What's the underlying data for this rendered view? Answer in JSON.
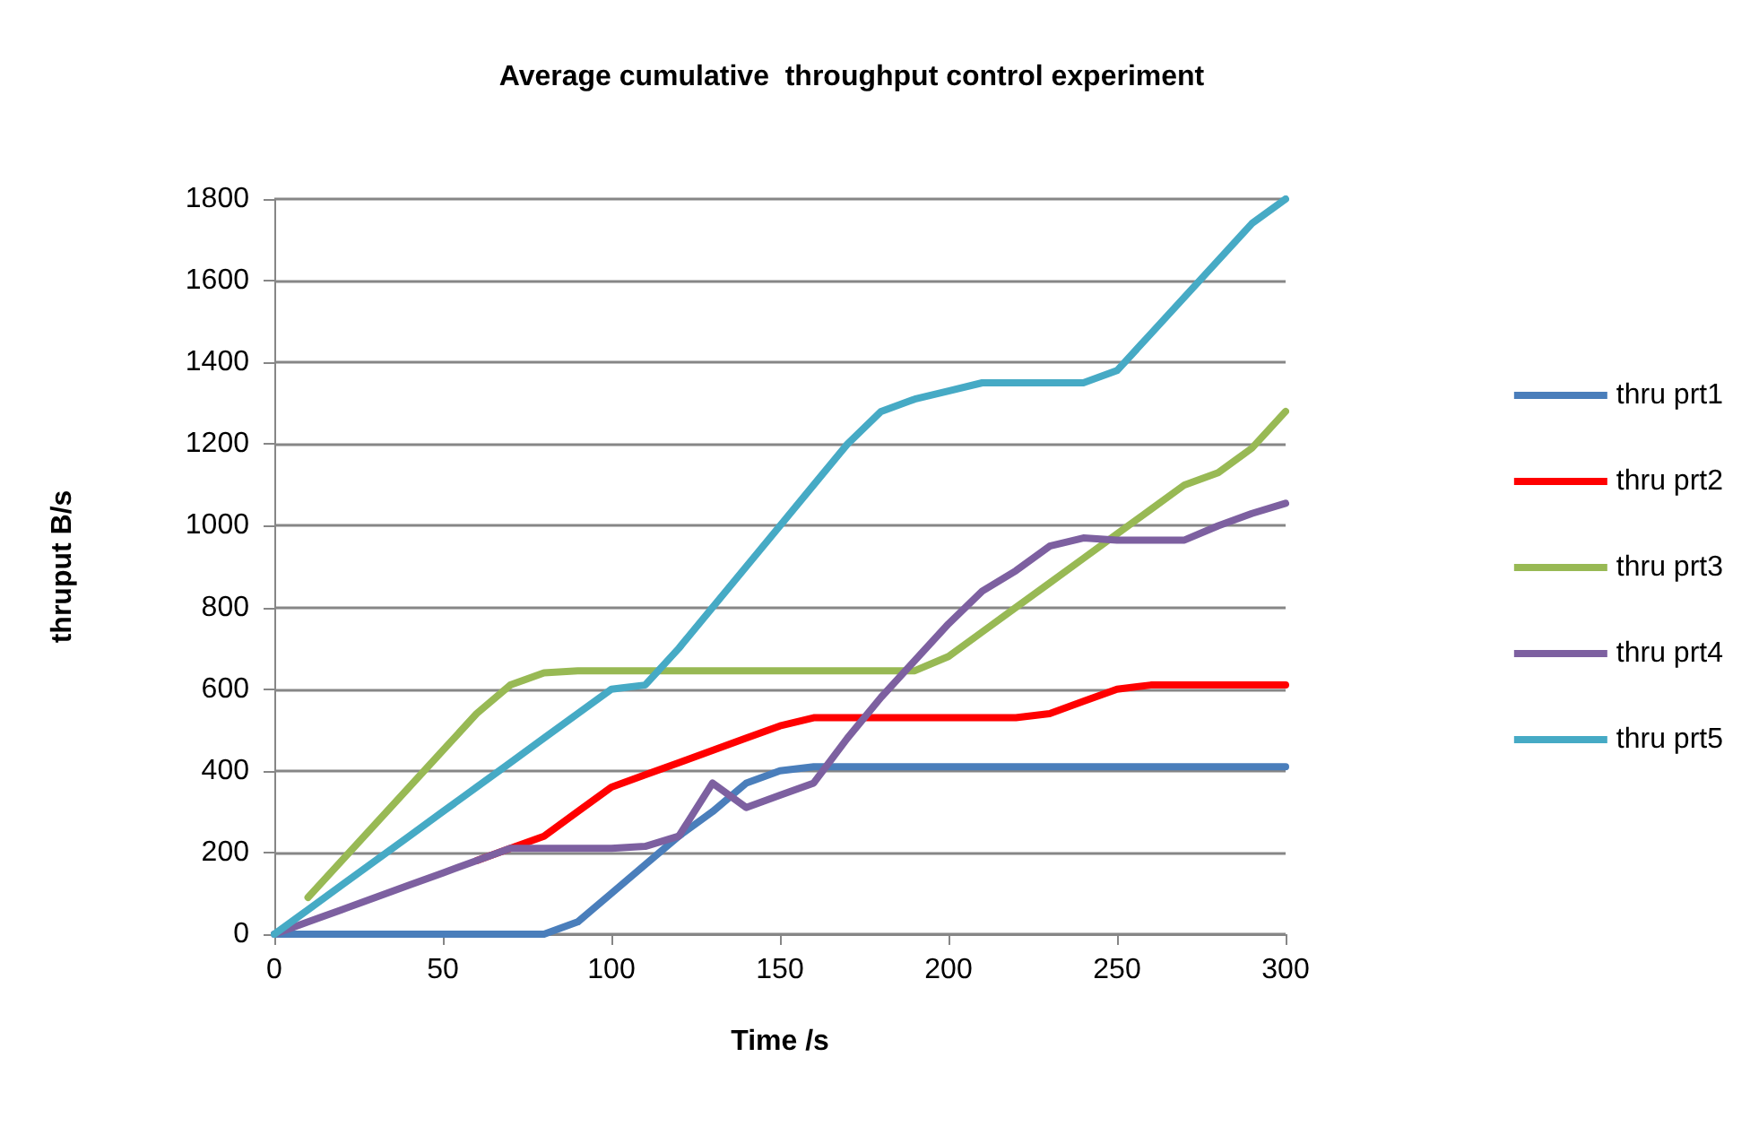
{
  "chart_data": {
    "type": "line",
    "title": "Average cumulative  throughput control experiment",
    "xlabel": "Time /s",
    "ylabel": "thruput B/s",
    "x": [
      0,
      10,
      20,
      30,
      40,
      50,
      60,
      70,
      80,
      90,
      100,
      110,
      120,
      130,
      140,
      150,
      160,
      170,
      180,
      190,
      200,
      210,
      220,
      230,
      240,
      250,
      260,
      270,
      280,
      290,
      300
    ],
    "series": [
      {
        "name": "thru prt1",
        "color": "#4a7ebb",
        "values": [
          0,
          0,
          0,
          0,
          0,
          0,
          0,
          0,
          0,
          30,
          100,
          170,
          240,
          300,
          370,
          400,
          410,
          410,
          410,
          410,
          410,
          410,
          410,
          410,
          410,
          410,
          410,
          410,
          410,
          410,
          410
        ]
      },
      {
        "name": "thru prt2",
        "color": "#ff0000",
        "values": [
          null,
          null,
          null,
          null,
          null,
          null,
          180,
          210,
          240,
          300,
          360,
          390,
          420,
          450,
          480,
          510,
          530,
          530,
          530,
          530,
          530,
          530,
          530,
          540,
          570,
          600,
          610,
          610,
          610,
          610,
          610
        ]
      },
      {
        "name": "thru prt3",
        "color": "#98b954",
        "values": [
          null,
          90,
          180,
          270,
          360,
          450,
          540,
          610,
          640,
          645,
          645,
          645,
          645,
          645,
          645,
          645,
          645,
          645,
          645,
          645,
          680,
          740,
          800,
          860,
          920,
          980,
          1040,
          1100,
          1130,
          1190,
          1280
        ]
      },
      {
        "name": "thru prt4",
        "color": "#7d60a0",
        "values": [
          0,
          30,
          60,
          90,
          120,
          150,
          180,
          210,
          210,
          210,
          210,
          215,
          240,
          370,
          310,
          340,
          370,
          480,
          580,
          670,
          760,
          840,
          890,
          950,
          970,
          965,
          965,
          965,
          1000,
          1030,
          1055
        ]
      },
      {
        "name": "thru prt5",
        "color": "#46aac5",
        "values": [
          0,
          60,
          120,
          180,
          240,
          300,
          360,
          420,
          480,
          540,
          600,
          610,
          700,
          800,
          900,
          1000,
          1100,
          1200,
          1280,
          1310,
          1330,
          1350,
          1350,
          1350,
          1350,
          1380,
          1470,
          1560,
          1650,
          1740,
          1800
        ]
      }
    ],
    "xlim": [
      0,
      300
    ],
    "xticks": [
      0,
      50,
      100,
      150,
      200,
      250,
      300
    ],
    "ylim": [
      0,
      1800
    ],
    "yticks": [
      0,
      200,
      400,
      600,
      800,
      1000,
      1200,
      1400,
      1600,
      1800
    ],
    "grid": "y",
    "legend": "right",
    "marker": "none",
    "line_style": "solid"
  }
}
